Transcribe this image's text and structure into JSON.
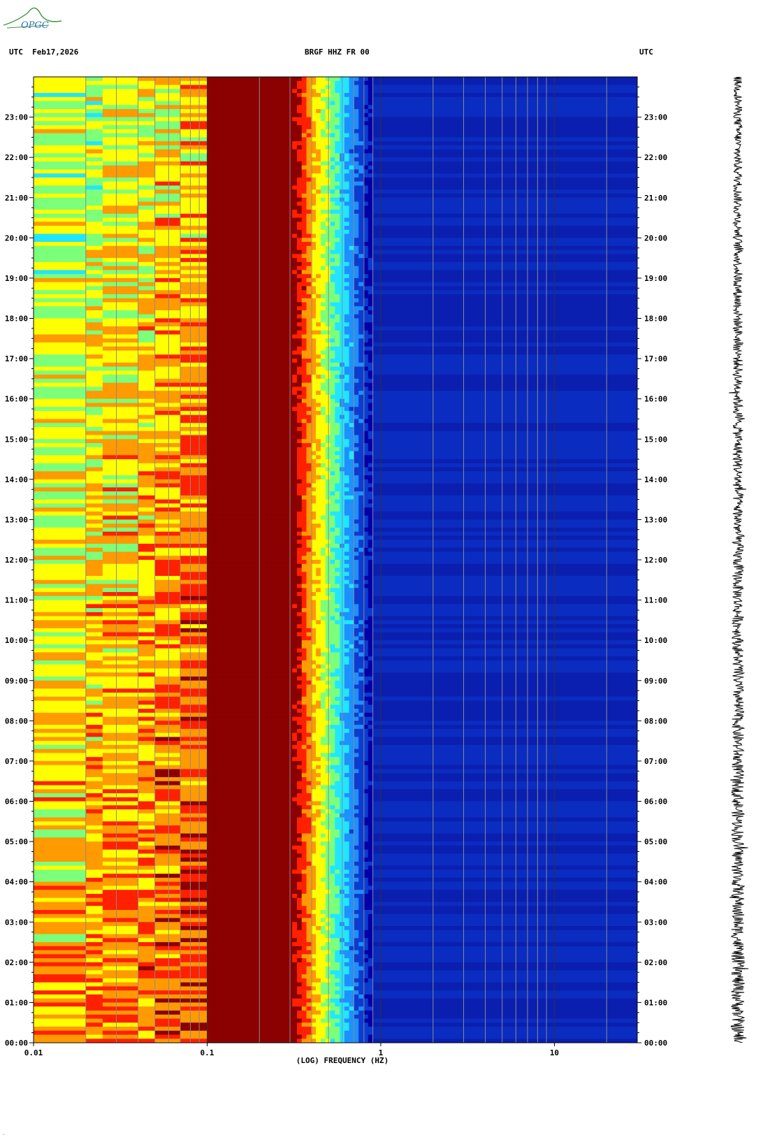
{
  "header": {
    "left": "UTC  Feb17,2026",
    "center": "BRGF HHZ FR 00",
    "right": "UTC"
  },
  "logo_text": "OPGC",
  "chart_data": {
    "type": "heatmap",
    "title": "BRGF HHZ FR 00",
    "xlabel": "(LOG) FREQUENCY (HZ)",
    "xscale": "log",
    "xlim": [
      0.01,
      30
    ],
    "x_tick_labels": [
      "0.01",
      "0.1",
      "1",
      "10"
    ],
    "ylim_hours": [
      0,
      24
    ],
    "y_tick_labels": [
      "00:00",
      "01:00",
      "02:00",
      "03:00",
      "04:00",
      "05:00",
      "06:00",
      "07:00",
      "08:00",
      "09:00",
      "10:00",
      "11:00",
      "12:00",
      "13:00",
      "14:00",
      "15:00",
      "16:00",
      "17:00",
      "18:00",
      "19:00",
      "20:00",
      "21:00",
      "22:00",
      "23:00"
    ],
    "colormap": [
      "#0000a8",
      "#0a3cd2",
      "#1e90ff",
      "#22e6ff",
      "#7cff7a",
      "#ffff00",
      "#ff9a00",
      "#ff2000",
      "#8b0000"
    ],
    "microseism_band_hz": [
      0.1,
      0.29
    ],
    "grid": "vertical lines at log decades and sub-decades",
    "trace_panel": "seismogram trace at right"
  }
}
